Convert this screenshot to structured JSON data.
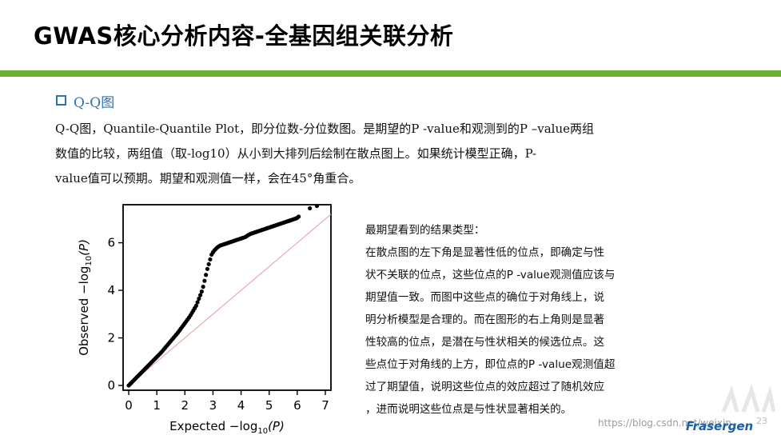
{
  "slide": {
    "title": "GWAS核心分析内容-全基因组关联分析",
    "accent_color": "#6fae34"
  },
  "section": {
    "heading": "Q-Q图",
    "bullet_icon": "hollow-square-bullet",
    "color": "#2a73b8"
  },
  "intro": {
    "lines": [
      "Q-Q图，Quantile-Quantile Plot，即分位数-分位数图。是期望的P -value和观测到的P –value两组",
      "数值的比较，两组值（取-log10）从小到大排列后绘制在散点图上。如果统计模型正确，P-",
      "value值可以预期。期望和观测值一样，会在45°角重合。"
    ]
  },
  "description": {
    "lines": [
      "最期望看到的结果类型：",
      "在散点图的左下角是显著性低的位点，即确定与性",
      "状不关联的位点，这些位点的P -value观测值应该与",
      "期望值一致。而图中这些点的确位于对角线上，说",
      "明分析模型是合理的。而在图形的右上角则是显著",
      "性较高的位点，是潜在与性状相关的候选位点。这",
      "些点位于对角线的上方，即位点的P -value观测值超",
      "过了期望值，说明这些位点的效应超过了随机效应",
      "，进而说明这些位点是与性状显著相关的。"
    ]
  },
  "chart_data": {
    "type": "scatter",
    "x_axis": {
      "label_prefix": "Expected −log",
      "label_sub": "10",
      "label_suffix": "(P)",
      "ticks": [
        "0",
        "1",
        "2",
        "3",
        "4",
        "5",
        "6",
        "7"
      ],
      "range": [
        -0.2,
        7.2
      ]
    },
    "y_axis": {
      "label_prefix": "Observed −log",
      "label_sub": "10",
      "label_suffix": "(P)",
      "ticks": [
        "0",
        "2",
        "4",
        "6"
      ],
      "range": [
        -0.2,
        7.6
      ]
    },
    "reference_line": {
      "from": [
        0,
        0
      ],
      "to": [
        7.2,
        7.2
      ],
      "color": "#e8a9a9"
    },
    "point_color": "#000000",
    "series": [
      {
        "x": [
          0.0,
          0.05,
          0.1,
          0.15,
          0.2,
          0.25,
          0.3,
          0.35,
          0.4,
          0.45,
          0.5,
          0.55,
          0.6,
          0.65,
          0.7,
          0.75,
          0.8,
          0.85,
          0.9,
          0.95,
          1.0,
          1.05,
          1.1,
          1.15,
          1.2,
          1.25,
          1.3,
          1.35,
          1.4,
          1.45,
          1.5,
          1.55,
          1.6,
          1.65,
          1.7,
          1.75,
          1.8,
          1.85,
          1.9,
          1.95,
          2.0,
          2.05,
          2.1,
          2.15,
          2.2,
          2.25,
          2.3,
          2.35,
          2.4,
          2.45,
          2.5,
          2.55,
          2.6,
          2.65,
          2.7,
          2.75,
          2.8,
          2.85,
          2.9,
          2.95,
          3.0,
          3.05,
          3.1,
          3.15,
          3.2,
          3.25,
          3.3,
          3.35,
          3.4,
          3.45,
          3.5,
          3.55,
          3.6,
          3.65,
          3.7,
          3.75,
          3.8,
          3.85,
          3.9,
          3.95,
          4.0,
          4.05,
          4.1,
          4.15,
          4.2,
          4.25,
          4.3,
          4.35,
          4.4,
          4.45,
          4.5,
          4.55,
          4.6,
          4.65,
          4.7,
          4.75,
          4.8,
          4.85,
          4.9,
          4.95,
          5.0,
          5.05,
          5.1,
          5.15,
          5.2,
          5.25,
          5.3,
          5.35,
          5.4,
          5.45,
          5.5,
          5.55,
          5.6,
          5.65,
          5.7,
          5.75,
          5.8,
          5.85,
          5.9,
          5.95,
          6.0,
          6.05,
          6.45,
          6.7
        ],
        "y": [
          0.0,
          0.06,
          0.12,
          0.18,
          0.24,
          0.3,
          0.36,
          0.42,
          0.48,
          0.54,
          0.6,
          0.66,
          0.72,
          0.78,
          0.84,
          0.9,
          0.96,
          1.02,
          1.08,
          1.14,
          1.2,
          1.26,
          1.32,
          1.38,
          1.45,
          1.52,
          1.59,
          1.66,
          1.73,
          1.8,
          1.87,
          1.94,
          2.01,
          2.08,
          2.15,
          2.22,
          2.3,
          2.38,
          2.46,
          2.54,
          2.62,
          2.7,
          2.78,
          2.86,
          2.95,
          3.05,
          3.15,
          3.25,
          3.35,
          3.5,
          3.65,
          3.8,
          3.95,
          4.15,
          4.4,
          4.65,
          4.9,
          5.1,
          5.3,
          5.5,
          5.6,
          5.68,
          5.74,
          5.8,
          5.84,
          5.88,
          5.9,
          5.92,
          5.94,
          5.96,
          5.98,
          6.0,
          6.02,
          6.04,
          6.06,
          6.08,
          6.1,
          6.12,
          6.14,
          6.16,
          6.18,
          6.2,
          6.22,
          6.24,
          6.28,
          6.32,
          6.35,
          6.38,
          6.4,
          6.42,
          6.44,
          6.46,
          6.48,
          6.5,
          6.52,
          6.54,
          6.56,
          6.58,
          6.6,
          6.62,
          6.64,
          6.66,
          6.68,
          6.7,
          6.72,
          6.74,
          6.76,
          6.78,
          6.8,
          6.82,
          6.84,
          6.86,
          6.88,
          6.9,
          6.92,
          6.94,
          6.96,
          6.98,
          7.0,
          7.02,
          7.05,
          7.1,
          7.45,
          7.55
        ]
      }
    ]
  },
  "footer": {
    "watermark": "https://blog.csdn.net/weixin_…",
    "brand": "Frasergen",
    "page_number": "23"
  }
}
